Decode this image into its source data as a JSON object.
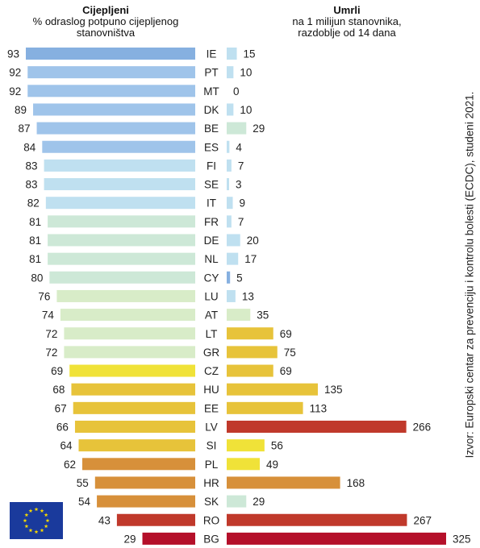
{
  "left_header": {
    "title": "Cijepljeni",
    "subtitle_line1": "% odraslog potpuno cijepljenog",
    "subtitle_line2": "stanovništva"
  },
  "right_header": {
    "title": "Umrli",
    "subtitle_line1": "na 1 milijun stanovnika,",
    "subtitle_line2": "razdoblje od 14 dana"
  },
  "source": "Izvor: Europski centar za prevenciju i kontrolu bolesti (ECDC), studeni 2021.",
  "colors": {
    "blue": "#9fc4ea",
    "blue_dark": "#86b0e0",
    "light_blue": "#bfe0f0",
    "mint": "#cde8d7",
    "light_green": "#d8ecc8",
    "yellow": "#f0e238",
    "gold": "#e7c33a",
    "orange": "#d7903a",
    "red": "#c0392b",
    "crimson": "#b5102a",
    "eu_blue": "#1a3a9c",
    "eu_star": "#f5d800"
  },
  "chart_data": {
    "type": "bar",
    "layout": "butterfly",
    "categories": [
      "IE",
      "PT",
      "MT",
      "DK",
      "BE",
      "ES",
      "FI",
      "SE",
      "IT",
      "FR",
      "DE",
      "NL",
      "CY",
      "LU",
      "AT",
      "LT",
      "GR",
      "CZ",
      "HU",
      "EE",
      "LV",
      "SI",
      "PL",
      "HR",
      "SK",
      "RO",
      "BG"
    ],
    "series": [
      {
        "name": "Cijepljeni",
        "values": [
          93,
          92,
          92,
          89,
          87,
          84,
          83,
          83,
          82,
          81,
          81,
          81,
          80,
          76,
          74,
          72,
          72,
          69,
          68,
          67,
          66,
          64,
          62,
          55,
          54,
          43,
          29
        ],
        "colors": [
          "blue_dark",
          "blue",
          "blue",
          "blue",
          "blue",
          "blue",
          "light_blue",
          "light_blue",
          "light_blue",
          "mint",
          "mint",
          "mint",
          "mint",
          "light_green",
          "light_green",
          "light_green",
          "light_green",
          "yellow",
          "gold",
          "gold",
          "gold",
          "gold",
          "orange",
          "orange",
          "orange",
          "red",
          "crimson"
        ]
      },
      {
        "name": "Umrli",
        "values": [
          15,
          10,
          0,
          10,
          29,
          4,
          7,
          3,
          9,
          7,
          20,
          17,
          5,
          13,
          35,
          69,
          75,
          69,
          135,
          113,
          266,
          56,
          49,
          168,
          29,
          267,
          325
        ],
        "colors": [
          "light_blue",
          "light_blue",
          "light_blue",
          "light_blue",
          "mint",
          "light_blue",
          "light_blue",
          "light_blue",
          "light_blue",
          "light_blue",
          "light_blue",
          "light_blue",
          "blue_dark",
          "light_blue",
          "light_green",
          "gold",
          "gold",
          "gold",
          "gold",
          "gold",
          "red",
          "yellow",
          "yellow",
          "orange",
          "mint",
          "red",
          "crimson"
        ]
      }
    ],
    "left_max": 93,
    "right_max": 325
  }
}
